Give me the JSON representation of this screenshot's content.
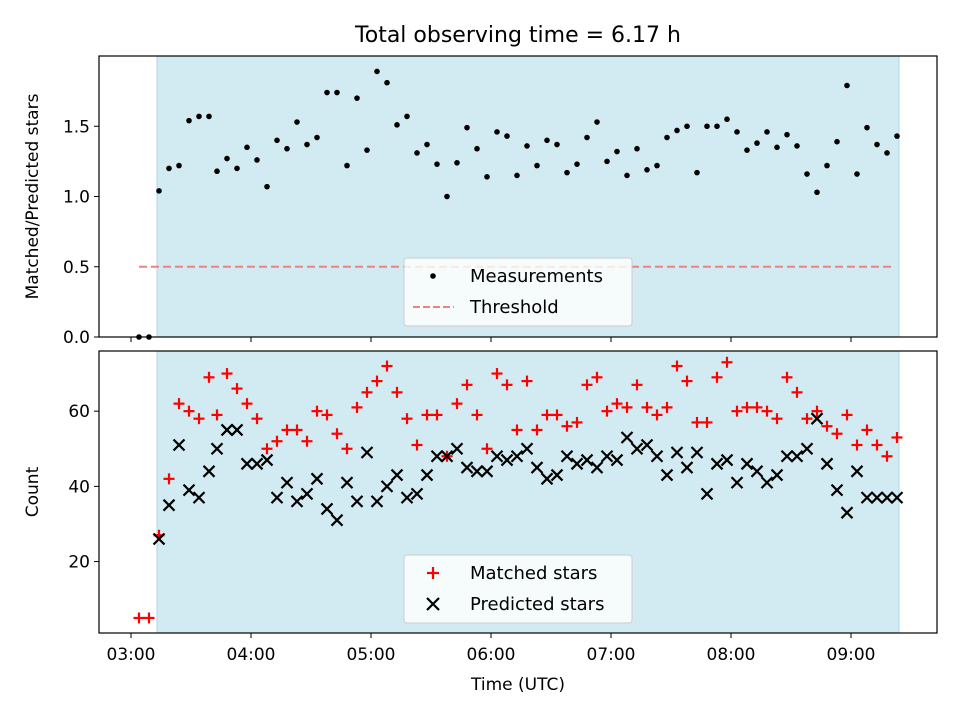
{
  "title": "Total observing time = 6.17 h",
  "colors": {
    "span": "#add8e6",
    "measurements": "#000000",
    "threshold": "#f08080",
    "matched": "#ff0000",
    "predicted": "#000000"
  },
  "chart_data": [
    {
      "type": "scatter",
      "ylabel": "Matched/Predicted stars",
      "xlim": [
        "02:44",
        "09:43"
      ],
      "ylim": [
        0,
        2.0
      ],
      "yticks": [
        "0.0",
        "0.5",
        "1.0",
        "1.5"
      ],
      "observing_span": [
        "03:13",
        "09:24"
      ],
      "legend_placement": "lower center",
      "legend": [
        "Measurements",
        "Threshold"
      ],
      "threshold": {
        "name": "Threshold",
        "value": 0.5,
        "x_range": [
          "03:04",
          "09:22"
        ]
      },
      "series": [
        {
          "name": "Measurements",
          "x": [
            "03:04",
            "03:09",
            "03:14",
            "03:19",
            "03:24",
            "03:29",
            "03:34",
            "03:39",
            "03:43",
            "03:48",
            "03:53",
            "03:58",
            "04:03",
            "04:08",
            "04:13",
            "04:18",
            "04:23",
            "04:28",
            "04:33",
            "04:38",
            "04:43",
            "04:48",
            "04:53",
            "04:58",
            "05:03",
            "05:08",
            "05:13",
            "05:18",
            "05:23",
            "05:28",
            "05:33",
            "05:38",
            "05:43",
            "05:48",
            "05:53",
            "05:58",
            "06:03",
            "06:08",
            "06:13",
            "06:18",
            "06:23",
            "06:28",
            "06:33",
            "06:38",
            "06:43",
            "06:48",
            "06:53",
            "06:58",
            "07:03",
            "07:08",
            "07:13",
            "07:18",
            "07:23",
            "07:28",
            "07:33",
            "07:38",
            "07:43",
            "07:48",
            "07:53",
            "07:58",
            "08:03",
            "08:08",
            "08:13",
            "08:18",
            "08:23",
            "08:28",
            "08:33",
            "08:38",
            "08:43",
            "08:48",
            "08:53",
            "08:58",
            "09:03",
            "09:08",
            "09:13",
            "09:18",
            "09:23"
          ],
          "y": [
            0.0,
            0.0,
            1.04,
            1.2,
            1.22,
            1.54,
            1.57,
            1.57,
            1.18,
            1.27,
            1.2,
            1.35,
            1.26,
            1.07,
            1.4,
            1.34,
            1.53,
            1.37,
            1.42,
            1.74,
            1.74,
            1.22,
            1.7,
            1.33,
            1.89,
            1.81,
            1.51,
            1.57,
            1.31,
            1.37,
            1.23,
            1.0,
            1.24,
            1.49,
            1.34,
            1.14,
            1.46,
            1.43,
            1.15,
            1.36,
            1.22,
            1.4,
            1.37,
            1.17,
            1.23,
            1.42,
            1.53,
            1.25,
            1.32,
            1.15,
            1.34,
            1.19,
            1.22,
            1.42,
            1.47,
            1.5,
            1.17,
            1.5,
            1.5,
            1.55,
            1.46,
            1.33,
            1.38,
            1.46,
            1.35,
            1.44,
            1.36,
            1.16,
            1.03,
            1.22,
            1.39,
            1.79,
            1.16,
            1.49,
            1.37,
            1.31,
            1.43
          ]
        }
      ]
    },
    {
      "type": "scatter",
      "xlabel": "Time (UTC)",
      "ylabel": "Count",
      "xlim": [
        "02:44",
        "09:43"
      ],
      "ylim": [
        1,
        76
      ],
      "yticks": [
        "20",
        "40",
        "60"
      ],
      "xticks": [
        "03:00",
        "04:00",
        "05:00",
        "06:00",
        "07:00",
        "08:00",
        "09:00"
      ],
      "observing_span": [
        "03:13",
        "09:24"
      ],
      "legend_placement": "lower center",
      "legend": [
        "Matched stars",
        "Predicted stars"
      ],
      "series": [
        {
          "name": "Matched stars",
          "x": [
            "03:04",
            "03:09",
            "03:14",
            "03:19",
            "03:24",
            "03:29",
            "03:34",
            "03:39",
            "03:43",
            "03:48",
            "03:53",
            "03:58",
            "04:03",
            "04:08",
            "04:13",
            "04:18",
            "04:23",
            "04:28",
            "04:33",
            "04:38",
            "04:43",
            "04:48",
            "04:53",
            "04:58",
            "05:03",
            "05:08",
            "05:13",
            "05:18",
            "05:23",
            "05:28",
            "05:33",
            "05:38",
            "05:43",
            "05:48",
            "05:53",
            "05:58",
            "06:03",
            "06:08",
            "06:13",
            "06:18",
            "06:23",
            "06:28",
            "06:33",
            "06:38",
            "06:43",
            "06:48",
            "06:53",
            "06:58",
            "07:03",
            "07:08",
            "07:13",
            "07:18",
            "07:23",
            "07:28",
            "07:33",
            "07:38",
            "07:43",
            "07:48",
            "07:53",
            "07:58",
            "08:03",
            "08:08",
            "08:13",
            "08:18",
            "08:23",
            "08:28",
            "08:33",
            "08:38",
            "08:43",
            "08:48",
            "08:53",
            "08:58",
            "09:03",
            "09:08",
            "09:13",
            "09:18",
            "09:23"
          ],
          "y": [
            5,
            5,
            27,
            42,
            62,
            60,
            58,
            69,
            59,
            70,
            66,
            62,
            58,
            50,
            52,
            55,
            55,
            52,
            60,
            59,
            54,
            50,
            61,
            65,
            68,
            72,
            65,
            58,
            51,
            59,
            59,
            48,
            62,
            67,
            59,
            50,
            70,
            67,
            55,
            68,
            55,
            59,
            59,
            56,
            57,
            67,
            69,
            60,
            62,
            61,
            67,
            61,
            59,
            61,
            72,
            68,
            57,
            57,
            69,
            73,
            60,
            61,
            61,
            60,
            58,
            69,
            65,
            58,
            60,
            56,
            54,
            59,
            51,
            55,
            51,
            48,
            53
          ]
        },
        {
          "name": "Predicted stars",
          "x": [
            "03:04",
            "03:09",
            "03:14",
            "03:19",
            "03:24",
            "03:29",
            "03:34",
            "03:39",
            "03:43",
            "03:48",
            "03:53",
            "03:58",
            "04:03",
            "04:08",
            "04:13",
            "04:18",
            "04:23",
            "04:28",
            "04:33",
            "04:38",
            "04:43",
            "04:48",
            "04:53",
            "04:58",
            "05:03",
            "05:08",
            "05:13",
            "05:18",
            "05:23",
            "05:28",
            "05:33",
            "05:38",
            "05:43",
            "05:48",
            "05:53",
            "05:58",
            "06:03",
            "06:08",
            "06:13",
            "06:18",
            "06:23",
            "06:28",
            "06:33",
            "06:38",
            "06:43",
            "06:48",
            "06:53",
            "06:58",
            "07:03",
            "07:08",
            "07:13",
            "07:18",
            "07:23",
            "07:28",
            "07:33",
            "07:38",
            "07:43",
            "07:48",
            "07:53",
            "07:58",
            "08:03",
            "08:08",
            "08:13",
            "08:18",
            "08:23",
            "08:28",
            "08:33",
            "08:38",
            "08:43",
            "08:48",
            "08:53",
            "08:58",
            "09:03",
            "09:08",
            "09:13",
            "09:18",
            "09:23"
          ],
          "y": [
            null,
            null,
            26,
            35,
            51,
            39,
            37,
            44,
            50,
            55,
            55,
            46,
            46,
            47,
            37,
            41,
            36,
            38,
            42,
            34,
            31,
            41,
            36,
            49,
            36,
            40,
            43,
            37,
            38,
            43,
            48,
            48,
            50,
            45,
            44,
            44,
            48,
            47,
            48,
            50,
            45,
            42,
            43,
            48,
            46,
            47,
            45,
            48,
            47,
            53,
            50,
            51,
            48,
            43,
            49,
            45,
            49,
            38,
            46,
            47,
            41,
            46,
            44,
            41,
            43,
            48,
            48,
            50,
            58,
            46,
            39,
            33,
            44,
            37,
            37,
            37,
            37
          ]
        }
      ]
    }
  ]
}
